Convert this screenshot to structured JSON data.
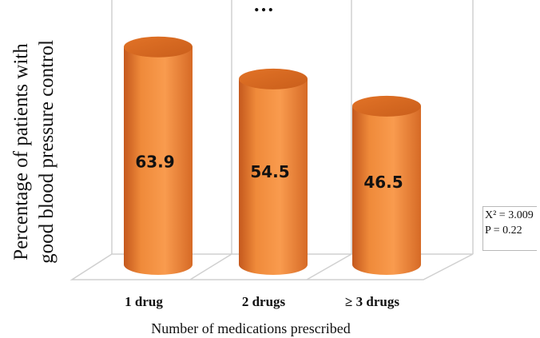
{
  "chart_data": {
    "type": "bar",
    "title": "…",
    "categories": [
      "1 drug",
      "2 drugs",
      "≥ 3 drugs"
    ],
    "values": [
      63.9,
      54.5,
      46.5
    ],
    "value_labels": [
      "63.9",
      "54.5",
      "46.5"
    ],
    "ylabel_lines": [
      "Percentage of patients with",
      "good blood pressure control"
    ],
    "xlabel": "Number of medications prescribed",
    "ylim": [
      0,
      80
    ],
    "bar_style": "3d-cylinder",
    "bar_color": "#f08a3a",
    "grid": true,
    "annotation": {
      "chi_square": "X² = 3.009",
      "p_value": "P = 0.22"
    }
  }
}
